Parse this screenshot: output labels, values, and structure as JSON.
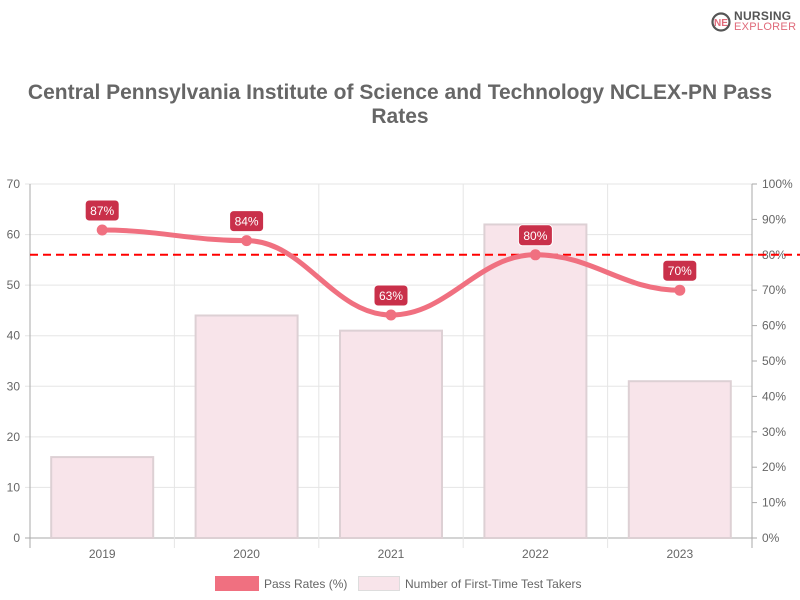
{
  "logo": {
    "line1": "NURSING",
    "line2": "EXPLORER"
  },
  "chart_data": {
    "type": "bar+line",
    "title": "Central Pennsylvania Institute of Science and Technology NCLEX-PN Pass Rates",
    "categories": [
      "2019",
      "2020",
      "2021",
      "2022",
      "2023"
    ],
    "series": [
      {
        "name": "Pass Rates (%)",
        "type": "line",
        "axis": "right",
        "values": [
          87,
          84,
          63,
          80,
          70
        ],
        "labels": [
          "87%",
          "84%",
          "63%",
          "80%",
          "70%"
        ],
        "color": "#f07080"
      },
      {
        "name": "Number of First-Time Test Takers",
        "type": "bar",
        "axis": "left",
        "values": [
          16,
          44,
          41,
          62,
          31
        ],
        "color": "#f8e4ea"
      }
    ],
    "reference_line": {
      "axis": "right",
      "value": 80,
      "style": "dashed",
      "color": "#ff0000"
    },
    "left_axis": {
      "ylim": [
        0,
        70
      ],
      "ticks": [
        "0",
        "10",
        "20",
        "30",
        "40",
        "50",
        "60",
        "70"
      ]
    },
    "right_axis": {
      "ylim": [
        0,
        100
      ],
      "ticks": [
        "0%",
        "10%",
        "20%",
        "30%",
        "40%",
        "50%",
        "60%",
        "70%",
        "80%",
        "90%",
        "100%"
      ]
    },
    "grid": true,
    "legend": "bottom"
  }
}
